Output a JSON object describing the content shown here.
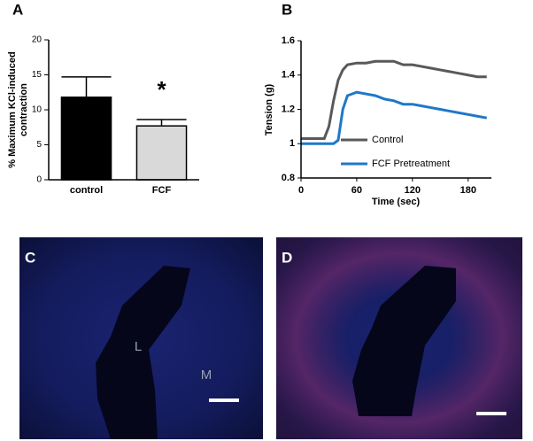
{
  "chart_data": [
    {
      "type": "bar",
      "panel_label": "A",
      "y_label": [
        "% Maximum KCl-induced",
        "contraction"
      ],
      "categories": [
        "control",
        "FCF"
      ],
      "values": [
        11.8,
        7.7
      ],
      "errors": [
        2.9,
        0.9
      ],
      "colors": [
        "#000000",
        "#d9d9d9"
      ],
      "ylim": [
        0,
        20
      ],
      "yticks": [
        0,
        5,
        10,
        15,
        20
      ],
      "annotations": [
        {
          "text": "*",
          "category": 1
        }
      ]
    },
    {
      "type": "line",
      "panel_label": "B",
      "x_label": "Time (sec)",
      "y_label": "Tension (g)",
      "x": [
        0,
        10,
        20,
        25,
        30,
        35,
        40,
        45,
        50,
        60,
        70,
        80,
        90,
        100,
        110,
        120,
        130,
        140,
        150,
        160,
        170,
        180,
        190,
        200
      ],
      "series": [
        {
          "name": "Control",
          "color": "#595959",
          "values": [
            1.03,
            1.03,
            1.03,
            1.03,
            1.1,
            1.25,
            1.37,
            1.43,
            1.46,
            1.47,
            1.47,
            1.48,
            1.48,
            1.48,
            1.46,
            1.46,
            1.45,
            1.44,
            1.43,
            1.42,
            1.41,
            1.4,
            1.39,
            1.39
          ]
        },
        {
          "name": "FCF Pretreatment",
          "color": "#1f78c8",
          "values": [
            1.0,
            1.0,
            1.0,
            1.0,
            1.0,
            1.0,
            1.02,
            1.2,
            1.28,
            1.3,
            1.29,
            1.28,
            1.26,
            1.25,
            1.23,
            1.23,
            1.22,
            1.21,
            1.2,
            1.19,
            1.18,
            1.17,
            1.16,
            1.15
          ]
        }
      ],
      "xlim": [
        0,
        205
      ],
      "xticks": [
        0,
        60,
        120,
        180
      ],
      "ylim": [
        0.8,
        1.6
      ],
      "yticks": [
        0.8,
        1,
        1.2,
        1.4,
        1.6
      ]
    }
  ],
  "micrographs": [
    {
      "panel_label": "C",
      "labels": [
        "L",
        "M"
      ]
    },
    {
      "panel_label": "D"
    }
  ]
}
